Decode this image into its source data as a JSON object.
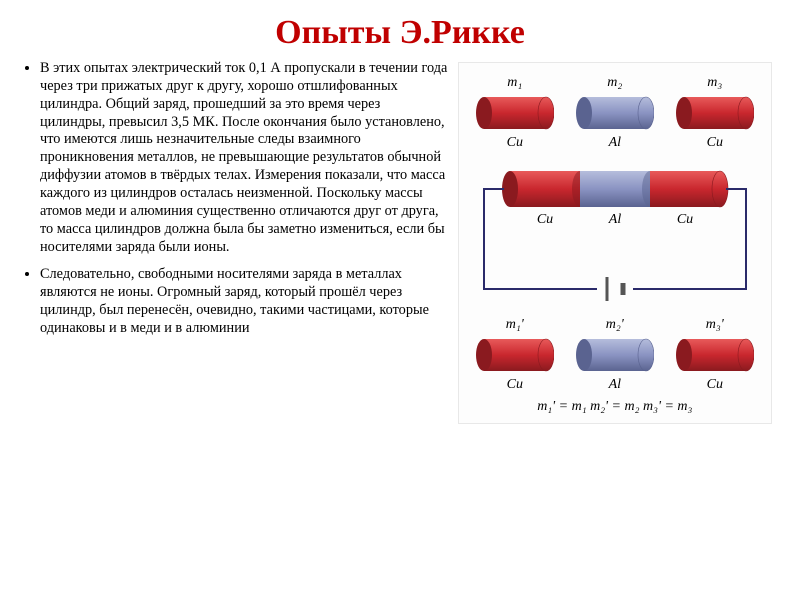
{
  "title": "Опыты Э.Рикке",
  "paragraphs": [
    "В этих опытах электрический ток 0,1 А пропускали в течении года через три прижатых друг к другу, хорошо отшлифованных цилиндра. Общий заряд, прошедший за это время через цилиндры, превысил 3,5 МК. После окончания было установлено, что имеются лишь незначительные следы взаимного проникновения металлов,  не превышающие результатов обычной диффузии атомов в твёрдых телах. Измерения показали, что масса каждого из цилиндров осталась неизменной. Поскольку массы атомов меди и алюминия существенно отличаются друг от друга, то масса цилиндров должна была бы заметно измениться, если бы носителями заряда были ионы.",
    "Следовательно, свободными носителями заряда в металлах являются не ионы. Огромный заряд, который прошёл через цилиндр, был перенесён, очевидно, такими частицами, которые одинаковы и в меди  и в алюминии"
  ],
  "cylinders_top": [
    {
      "top": "m₁",
      "mat": "Cu",
      "color": "cu"
    },
    {
      "top": "m₂",
      "mat": "Al",
      "color": "al"
    },
    {
      "top": "m₃",
      "mat": "Cu",
      "color": "cu"
    }
  ],
  "circuit_labels": [
    "Cu",
    "Al",
    "Cu"
  ],
  "cylinders_bot": [
    {
      "top": "m₁'",
      "mat": "Cu",
      "color": "cu"
    },
    {
      "top": "m₂'",
      "mat": "Al",
      "color": "al"
    },
    {
      "top": "m₃'",
      "mat": "Cu",
      "color": "cu"
    }
  ],
  "equation": "m₁' = m₁    m₂' = m₂    m₃' = m₃",
  "colors": {
    "cu_body": "#c9272e",
    "cu_dark": "#8a1a1f",
    "cu_light": "#e85a5a",
    "al_body": "#8a93c2",
    "al_dark": "#5a6390",
    "al_light": "#b5bddc",
    "wire": "#2a2a6a",
    "battery": "#555"
  }
}
